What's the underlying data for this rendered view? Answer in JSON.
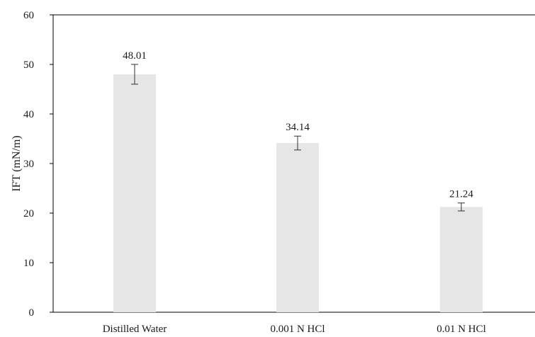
{
  "chart_data": {
    "type": "bar",
    "title": "",
    "xlabel": "",
    "ylabel": "IFT (mN/m)",
    "ylim": [
      0,
      60
    ],
    "yticks": [
      0,
      10,
      20,
      30,
      40,
      50,
      60
    ],
    "ytick_labels": [
      "0",
      "10",
      "20",
      "30",
      "40",
      "50",
      "60"
    ],
    "categories": [
      "Distilled Water",
      "0.001 N HCl",
      "0.01 N HCl"
    ],
    "values": [
      48.01,
      34.14,
      21.24
    ],
    "value_labels": [
      "48.01",
      "34.14",
      "21.24"
    ],
    "error_bars": [
      2.0,
      1.4,
      0.8
    ],
    "bar_color": "#e6e6e6",
    "grid": false,
    "legend": "none"
  }
}
